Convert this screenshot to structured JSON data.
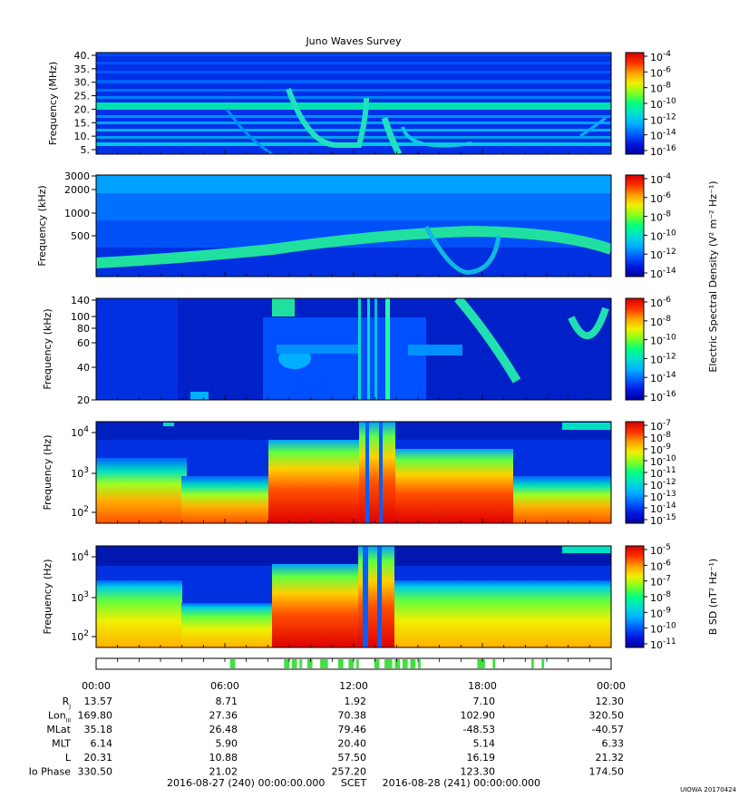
{
  "title": "Juno Waves Survey",
  "palette": [
    "#0000a0",
    "#0018e0",
    "#0060ff",
    "#00b0ff",
    "#00e0d0",
    "#00ff80",
    "#80ff20",
    "#f0f000",
    "#ffa000",
    "#ff3000",
    "#d00000"
  ],
  "panels": [
    {
      "ylabel": "Frequency (MHz)",
      "yticks": [
        "40.",
        "35.",
        "30.",
        "25.",
        "20.",
        "15.",
        "10.",
        "5."
      ],
      "cbar_ticks": [
        [
          "10",
          "-4"
        ],
        [
          "10",
          "-6"
        ],
        [
          "10",
          "-8"
        ],
        [
          "10",
          "-10"
        ],
        [
          "10",
          "-12"
        ],
        [
          "10",
          "-14"
        ],
        [
          "10",
          "-16"
        ]
      ]
    },
    {
      "ylabel": "Frequency (kHz)",
      "yticks": [
        "3000",
        "2000",
        "1000",
        "500"
      ],
      "cbar_ticks": [
        [
          "10",
          "-4"
        ],
        [
          "10",
          "-6"
        ],
        [
          "10",
          "-8"
        ],
        [
          "10",
          "-10"
        ],
        [
          "10",
          "-12"
        ],
        [
          "10",
          "-14"
        ]
      ]
    },
    {
      "ylabel": "Frequency (kHz)",
      "yticks": [
        "140",
        "100",
        "80",
        "60",
        "40",
        "20"
      ],
      "cbar_ticks": [
        [
          "10",
          "-6"
        ],
        [
          "10",
          "-8"
        ],
        [
          "10",
          "-10"
        ],
        [
          "10",
          "-12"
        ],
        [
          "10",
          "-14"
        ],
        [
          "10",
          "-16"
        ]
      ]
    },
    {
      "ylabel": "Frequency (Hz)",
      "yticks": [
        [
          "10",
          "4"
        ],
        [
          "10",
          "3"
        ],
        [
          "10",
          "2"
        ]
      ],
      "cbar_ticks": [
        [
          "10",
          "-7"
        ],
        [
          "10",
          "-8"
        ],
        [
          "10",
          "-9"
        ],
        [
          "10",
          "-10"
        ],
        [
          "10",
          "-11"
        ],
        [
          "10",
          "-12"
        ],
        [
          "10",
          "-13"
        ],
        [
          "10",
          "-14"
        ],
        [
          "10",
          "-15"
        ]
      ]
    },
    {
      "ylabel": "Frequency (Hz)",
      "yticks": [
        [
          "10",
          "4"
        ],
        [
          "10",
          "3"
        ],
        [
          "10",
          "2"
        ]
      ],
      "cbar_ticks": [
        [
          "10",
          "-5"
        ],
        [
          "10",
          "-6"
        ],
        [
          "10",
          "-7"
        ],
        [
          "10",
          "-8"
        ],
        [
          "10",
          "-9"
        ],
        [
          "10",
          "-10"
        ],
        [
          "10",
          "-11"
        ]
      ]
    }
  ],
  "cbar_label_e": "Electric Spectral Density (V² m⁻² Hz⁻¹)",
  "cbar_label_b": "B SD (nT² Hz⁻¹)",
  "mode_bar_green": [
    [
      0.26,
      0.27
    ],
    [
      0.365,
      0.375
    ],
    [
      0.38,
      0.39
    ],
    [
      0.395,
      0.4
    ],
    [
      0.41,
      0.42
    ],
    [
      0.435,
      0.45
    ],
    [
      0.47,
      0.48
    ],
    [
      0.49,
      0.5
    ],
    [
      0.505,
      0.51
    ],
    [
      0.54,
      0.55
    ],
    [
      0.56,
      0.575
    ],
    [
      0.58,
      0.59
    ],
    [
      0.595,
      0.605
    ],
    [
      0.61,
      0.62
    ],
    [
      0.625,
      0.63
    ],
    [
      0.74,
      0.755
    ],
    [
      0.77,
      0.775
    ],
    [
      0.845,
      0.85
    ],
    [
      0.865,
      0.87
    ]
  ],
  "ephemeris": {
    "time_labels": [
      "00:00",
      "06:00",
      "12:00",
      "18:00",
      "00:00"
    ],
    "rows": [
      {
        "label": "R",
        "sub": "J",
        "values": [
          "13.57",
          "8.71",
          "1.92",
          "7.10",
          "12.30"
        ]
      },
      {
        "label": "Lon",
        "sub": "III",
        "values": [
          "169.80",
          "27.36",
          "70.38",
          "102.90",
          "320.50"
        ]
      },
      {
        "label": "MLat",
        "sub": "",
        "values": [
          "35.18",
          "26.48",
          "79.46",
          "-48.53",
          "-40.57"
        ]
      },
      {
        "label": "MLT",
        "sub": "",
        "values": [
          "6.14",
          "5.90",
          "20.40",
          "5.14",
          "6.33"
        ]
      },
      {
        "label": "L",
        "sub": "",
        "values": [
          "20.31",
          "10.88",
          "57.50",
          "16.19",
          "21.32"
        ]
      },
      {
        "label": "Io Phase",
        "sub": "",
        "values": [
          "330.50",
          "21.02",
          "257.20",
          "123.30",
          "174.50"
        ]
      }
    ]
  },
  "footer": "2016-08-27 (240) 00:00:00.000     SCET     2016-08-28 (241) 00:00:00.000",
  "credit": "UIOWA 20170424",
  "chart_data": [
    {
      "type": "heatmap",
      "title": "Juno Waves Survey",
      "ylabel": "Frequency (MHz)",
      "ylim": [
        3,
        41
      ],
      "colorbar_range": [
        "1e-16",
        "1e-4"
      ]
    },
    {
      "type": "heatmap",
      "ylabel": "Frequency (kHz)",
      "ylim": [
        150,
        3000
      ],
      "colorbar_range": [
        "1e-14",
        "1e-4"
      ]
    },
    {
      "type": "heatmap",
      "ylabel": "Frequency (kHz)",
      "ylim": [
        20,
        140
      ],
      "colorbar_range": [
        "1e-16",
        "1e-6"
      ]
    },
    {
      "type": "heatmap",
      "ylabel": "Frequency (Hz)",
      "ylim": [
        50,
        20000
      ],
      "colorbar_range": [
        "1e-15",
        "1e-7"
      ]
    },
    {
      "type": "heatmap",
      "ylabel": "Frequency (Hz)",
      "ylim": [
        50,
        20000
      ],
      "colorbar_range": [
        "1e-11",
        "1e-5"
      ]
    }
  ]
}
